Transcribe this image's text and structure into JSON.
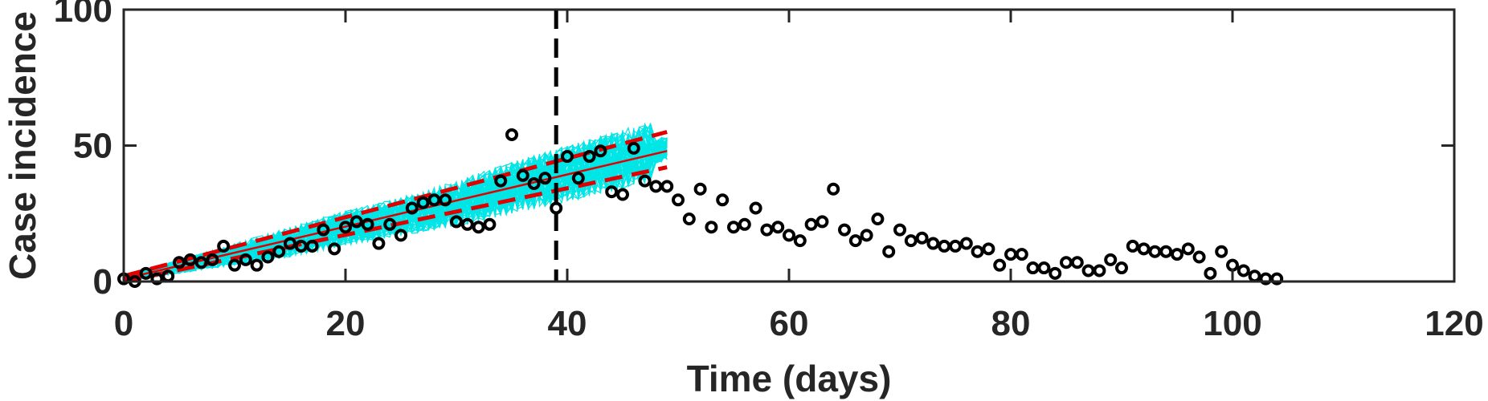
{
  "chart_data": {
    "type": "scatter",
    "title": "",
    "xlabel": "Time (days)",
    "ylabel": "Case incidence",
    "xlim": [
      0,
      120
    ],
    "ylim": [
      0,
      100
    ],
    "xticks": [
      0,
      20,
      40,
      60,
      80,
      100,
      120
    ],
    "yticks": [
      0,
      50,
      100
    ],
    "grid": false,
    "legend": "none",
    "calibration_cutoff_day": 39,
    "colors": {
      "observed": "#000000",
      "simulations": "#00e5e5",
      "fit": "#e00000",
      "cutoff": "#000000",
      "axes": "#262626"
    },
    "observed": {
      "x": [
        0,
        1,
        2,
        3,
        4,
        5,
        6,
        7,
        8,
        9,
        10,
        11,
        12,
        13,
        14,
        15,
        16,
        17,
        18,
        19,
        20,
        21,
        22,
        23,
        24,
        25,
        26,
        27,
        28,
        29,
        30,
        31,
        32,
        33,
        34,
        35,
        36,
        37,
        38,
        39,
        40,
        41,
        42,
        43,
        44,
        45,
        46,
        47,
        48,
        49,
        50,
        51,
        52,
        53,
        54,
        55,
        56,
        57,
        58,
        59,
        60,
        61,
        62,
        63,
        64,
        65,
        66,
        67,
        68,
        69,
        70,
        71,
        72,
        73,
        74,
        75,
        76,
        77,
        78,
        79,
        80,
        81,
        82,
        83,
        84,
        85,
        86,
        87,
        88,
        89,
        90,
        91,
        92,
        93,
        94,
        95,
        96,
        97,
        98,
        99,
        100,
        101,
        102,
        103,
        104
      ],
      "y": [
        1,
        0,
        3,
        1,
        2,
        7,
        8,
        7,
        8,
        13,
        6,
        8,
        6,
        9,
        11,
        14,
        13,
        13,
        19,
        12,
        20,
        22,
        21,
        14,
        21,
        17,
        27,
        29,
        30,
        30,
        22,
        21,
        20,
        21,
        37,
        54,
        39,
        36,
        38,
        27,
        46,
        38,
        46,
        48,
        33,
        32,
        49,
        37,
        35,
        35,
        30,
        23,
        34,
        20,
        30,
        20,
        21,
        27,
        19,
        20,
        17,
        15,
        21,
        22,
        34,
        19,
        15,
        17,
        23,
        11,
        19,
        15,
        16,
        14,
        13,
        13,
        14,
        11,
        12,
        6,
        10,
        10,
        5,
        5,
        3,
        7,
        7,
        4,
        4,
        8,
        5,
        13,
        12,
        11,
        11,
        10,
        12,
        9,
        3,
        11,
        6,
        4,
        2,
        1,
        1
      ]
    },
    "fit": {
      "x": [
        0,
        49
      ],
      "mean": [
        1,
        48
      ],
      "lower": [
        0,
        42
      ],
      "upper": [
        2,
        55
      ]
    },
    "simulations": {
      "count": 60,
      "x_range": [
        0,
        49
      ],
      "upper_envelope": [
        [
          0,
          2
        ],
        [
          5,
          8
        ],
        [
          10,
          14
        ],
        [
          15,
          20
        ],
        [
          20,
          26
        ],
        [
          25,
          31
        ],
        [
          30,
          37
        ],
        [
          35,
          44
        ],
        [
          40,
          50
        ],
        [
          45,
          56
        ],
        [
          49,
          60
        ]
      ],
      "lower_envelope": [
        [
          0,
          0
        ],
        [
          5,
          3
        ],
        [
          10,
          6
        ],
        [
          15,
          9
        ],
        [
          20,
          13
        ],
        [
          25,
          17
        ],
        [
          30,
          20
        ],
        [
          35,
          25
        ],
        [
          40,
          29
        ],
        [
          45,
          34
        ],
        [
          49,
          38
        ]
      ]
    }
  }
}
